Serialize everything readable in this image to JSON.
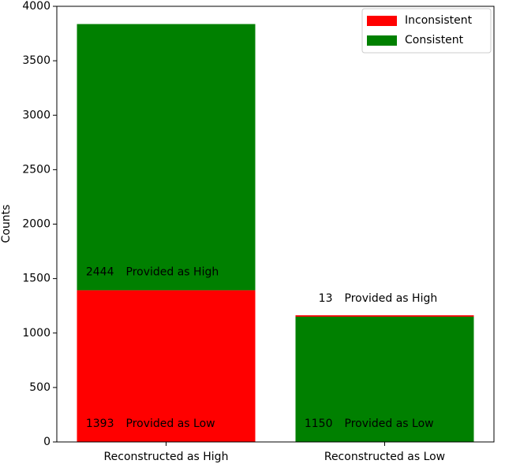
{
  "chart_data": {
    "type": "stacked_bar",
    "categories": [
      "Reconstructed as High",
      "Reconstructed as Low"
    ],
    "ylabel": "Counts",
    "series": [
      {
        "name": "Inconsistent",
        "color": "#ff0000",
        "values": [
          1393,
          13
        ],
        "annotations": [
          "Provided as Low",
          "Provided as High"
        ]
      },
      {
        "name": "Consistent",
        "color": "#008000",
        "values": [
          2444,
          1150
        ],
        "annotations": [
          "Provided as High",
          "Provided as Low"
        ]
      }
    ],
    "stack_order": [
      [
        0,
        1
      ],
      [
        1,
        0
      ]
    ],
    "ylim": [
      0,
      4000
    ],
    "yticks": [
      0,
      500,
      1000,
      1500,
      2000,
      2500,
      3000,
      3500,
      4000
    ],
    "legend": "upper right"
  }
}
